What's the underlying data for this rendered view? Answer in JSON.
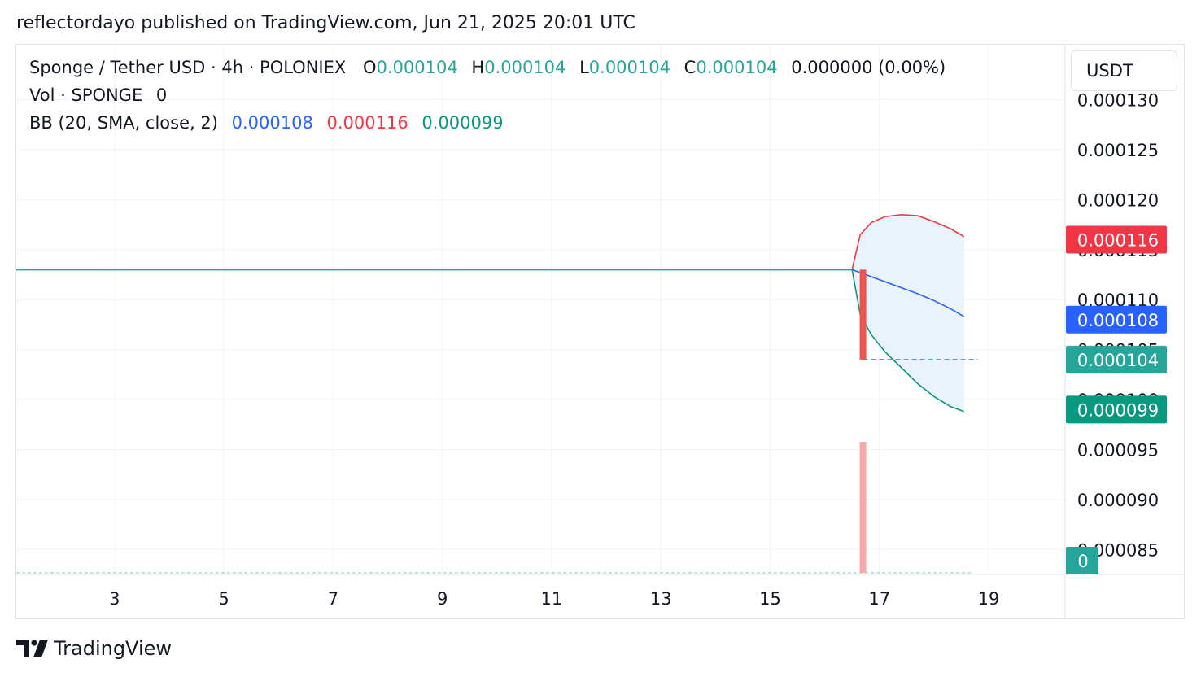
{
  "caption": "reflectordayo published on TradingView.com, Jun 21, 2025 20:01 UTC",
  "legend": {
    "symbol": "Sponge / Tether USD · 4h · POLONIEX",
    "o_label": "O",
    "o_value": "0.000104",
    "h_label": "H",
    "h_value": "0.000104",
    "l_label": "L",
    "l_value": "0.000104",
    "c_label": "C",
    "c_value": "0.000104",
    "change": "0.000000 (0.00%)",
    "vol_label": "Vol · SPONGE",
    "vol_value": "0",
    "bb_label": "BB (20, SMA, close, 2)",
    "bb_basis": "0.000108",
    "bb_upper": "0.000116",
    "bb_lower": "0.000099"
  },
  "currency": "USDT",
  "colors": {
    "grid": "#f0f3fa",
    "price": "#26a69a",
    "upper": "#f23645",
    "basis": "#2962ff",
    "lower": "#089981",
    "fill": "#eaf2fb",
    "volume": "#f7a9a9",
    "candle": "#ef5350",
    "text": "#131722"
  },
  "chart_data": {
    "type": "line",
    "x_ticks": [
      "3",
      "5",
      "7",
      "9",
      "11",
      "13",
      "15",
      "17",
      "19"
    ],
    "y_ticks": [
      "0.000130",
      "0.000125",
      "0.000120",
      "0.000115",
      "0.000110",
      "0.000105",
      "0.000100",
      "0.000095",
      "0.000090",
      "0.000085"
    ],
    "ylim": [
      8.25e-05,
      0.0001355
    ],
    "xlim": [
      1.2,
      20.4
    ],
    "price_line": {
      "name": "Close",
      "x": [
        1.2,
        16.5
      ],
      "y": [
        0.000113,
        0.000113
      ]
    },
    "candle": {
      "x": 16.7,
      "open": 0.000113,
      "close": 0.000104,
      "high": 0.000113,
      "low": 0.000104
    },
    "last_price_line": {
      "x": [
        16.7,
        18.8
      ],
      "y": [
        0.000104,
        0.000104
      ]
    },
    "bands": {
      "x": [
        16.5,
        16.65,
        16.85,
        17.1,
        17.4,
        17.7,
        18.0,
        18.3,
        18.55
      ],
      "upper": [
        0.000113,
        0.0001165,
        0.0001177,
        0.0001183,
        0.0001185,
        0.0001184,
        0.0001178,
        0.0001171,
        0.0001163
      ],
      "basis": [
        0.000113,
        0.0001127,
        0.0001123,
        0.0001118,
        0.0001112,
        0.0001106,
        0.0001099,
        0.0001091,
        0.0001083
      ],
      "lower": [
        0.000113,
        0.0001085,
        0.0001065,
        0.0001048,
        0.0001032,
        0.0001016,
        0.0001003,
        9.93e-05,
        9.88e-05
      ]
    },
    "volume_bar": {
      "x": 16.7,
      "value": 1
    },
    "price_labels": [
      {
        "text": "0.000116",
        "value": 0.000116,
        "color": "#f23645"
      },
      {
        "text": "0.000108",
        "value": 0.000108,
        "color": "#2962ff"
      },
      {
        "text": "0.000104",
        "value": 0.000104,
        "color": "#26a69a"
      },
      {
        "text": "0.000099",
        "value": 9.9e-05,
        "color": "#089981"
      }
    ],
    "volume_label": "0"
  },
  "brand": "TradingView"
}
